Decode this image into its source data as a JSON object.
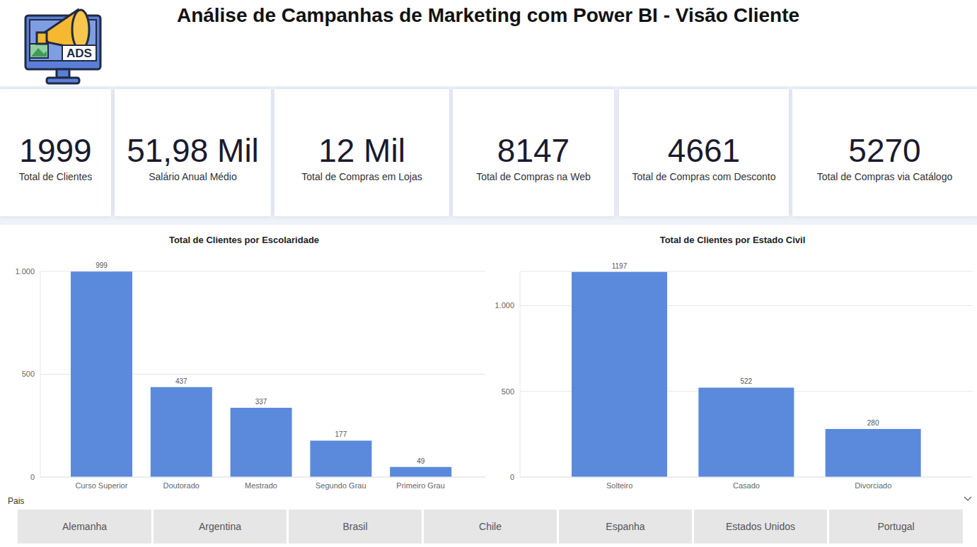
{
  "title": "Análise de Campanhas de Marketing com Power BI - Visão Cliente",
  "icon_text": "ADS",
  "kpis": [
    {
      "value": "1999",
      "label": "Total de Clientes"
    },
    {
      "value": "51,98 Mil",
      "label": "Salário Anual Médio"
    },
    {
      "value": "12 Mil",
      "label": "Total de Compras em Lojas"
    },
    {
      "value": "8147",
      "label": "Total de Compras na Web"
    },
    {
      "value": "4661",
      "label": "Total de Compras com Desconto"
    },
    {
      "value": "5270",
      "label": "Total de Compras via Catálogo"
    }
  ],
  "chart_data": [
    {
      "type": "bar",
      "title": "Total de Clientes por Escolaridade",
      "categories": [
        "Curso Superior",
        "Doutorado",
        "Mestrado",
        "Segundo Grau",
        "Primeiro Grau"
      ],
      "values": [
        999,
        437,
        337,
        177,
        49
      ],
      "color": "#5b8adc",
      "ylim": [
        0,
        1000
      ],
      "yticks": [
        0,
        500,
        {
          "value": 1000,
          "label": "1.000"
        }
      ],
      "grid": true,
      "data_labels": true
    },
    {
      "type": "bar",
      "title": "Total de Clientes por Estado Civil",
      "categories": [
        "Solteiro",
        "Casado",
        "Divorciado"
      ],
      "values": [
        1197,
        522,
        280
      ],
      "color": "#5b8adc",
      "ylim": [
        0,
        1200
      ],
      "yticks": [
        0,
        500,
        {
          "value": 1000,
          "label": "1.000"
        }
      ],
      "grid": true,
      "data_labels": true
    }
  ],
  "slicer": {
    "label": "Pais",
    "options": [
      "Alemanha",
      "Argentina",
      "Brasil",
      "Chile",
      "Espanha",
      "Estados Unidos",
      "Portugal"
    ]
  }
}
